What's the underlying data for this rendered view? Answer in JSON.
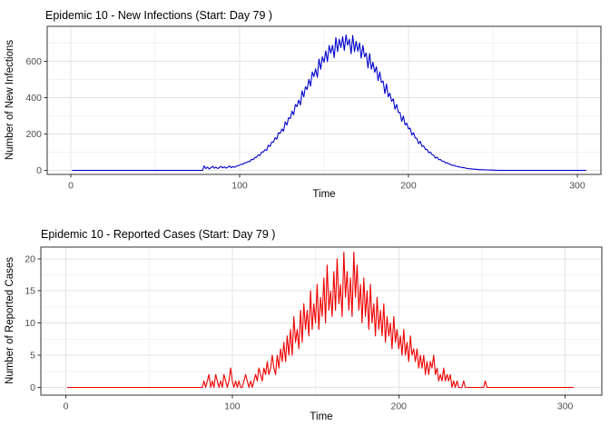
{
  "page": {
    "background": "#FFFFFF"
  },
  "theme": {
    "panel_background": "#FFFFFF",
    "grid_major": "#E4E4E4",
    "grid_minor": "#F2F2F2",
    "panel_border": "#333333",
    "tick_color": "#333333",
    "tick_label_color": "#4D4D4D",
    "title_color": "#000000"
  },
  "chart_data": [
    {
      "type": "line",
      "id": "new-infections",
      "title": "Epidemic 10 - New Infections (Start: Day 79 )",
      "xlabel": "Time",
      "ylabel": "Number of New Infections",
      "line_color": "#0000CD",
      "grid": true,
      "legend": "none",
      "x_ticks": [
        0,
        100,
        200,
        300
      ],
      "x_minor_ticks": [
        50,
        150,
        250
      ],
      "y_ticks": [
        0,
        200,
        400,
        600
      ],
      "y_minor_ticks": [
        100,
        300,
        500,
        700
      ],
      "xlim": [
        -14,
        314
      ],
      "ylim": [
        -22,
        793
      ],
      "x_first_day": 1,
      "x_step": 1,
      "values": [
        0,
        0,
        0,
        0,
        0,
        0,
        0,
        0,
        0,
        0,
        0,
        0,
        0,
        0,
        0,
        0,
        0,
        0,
        0,
        0,
        0,
        0,
        0,
        0,
        0,
        0,
        0,
        0,
        0,
        0,
        0,
        0,
        0,
        0,
        0,
        0,
        0,
        0,
        0,
        0,
        0,
        0,
        0,
        0,
        0,
        0,
        0,
        0,
        0,
        0,
        0,
        0,
        0,
        0,
        0,
        0,
        0,
        0,
        0,
        0,
        0,
        0,
        0,
        0,
        0,
        0,
        0,
        0,
        0,
        0,
        0,
        0,
        0,
        0,
        0,
        0,
        0,
        0,
        25,
        10,
        18,
        8,
        15,
        22,
        12,
        18,
        10,
        16,
        22,
        14,
        20,
        12,
        18,
        24,
        15,
        21,
        17,
        23,
        26,
        29,
        34,
        34,
        42,
        42,
        49,
        48,
        61,
        59,
        71,
        72,
        85,
        82,
        101,
        101,
        114,
        110,
        139,
        132,
        156,
        156,
        180,
        172,
        207,
        204,
        228,
        216,
        267,
        250,
        290,
        285,
        326,
        306,
        363,
        351,
        387,
        360,
        438,
        405,
        461,
        446,
        501,
        464,
        542,
        516,
        559,
        512,
        613,
        557,
        625,
        595,
        658,
        599,
        688,
        645,
        689,
        621,
        731,
        654,
        722,
        677,
        736,
        660,
        746,
        689,
        722,
        642,
        743,
        654,
        711,
        656,
        702,
        618,
        688,
        625,
        646,
        564,
        643,
        557,
        595,
        540,
        570,
        495,
        542,
        484,
        492,
        423,
        475,
        405,
        425,
        380,
        394,
        337,
        363,
        319,
        319,
        270,
        299,
        250,
        260,
        228,
        233,
        195,
        207,
        179,
        176,
        147,
        160,
        132,
        135,
        116,
        116,
        97,
        101,
        86,
        83,
        68,
        73,
        59,
        60,
        51,
        50,
        41,
        42,
        35,
        33,
        27,
        28,
        23,
        22,
        19,
        18,
        15,
        15,
        12,
        11,
        9,
        9,
        7,
        7,
        6,
        6,
        4,
        4,
        4,
        3,
        3,
        3,
        2,
        2,
        2,
        1,
        1,
        0,
        0,
        0,
        0,
        0,
        0,
        0,
        0,
        0,
        0,
        0,
        0,
        0,
        0,
        0,
        0,
        0,
        0,
        0,
        0,
        0,
        0,
        0,
        0,
        0,
        0,
        0,
        0,
        0,
        0,
        0,
        0,
        0,
        0,
        0,
        0,
        0,
        0,
        0,
        0,
        0,
        0,
        0,
        0,
        0,
        0,
        0,
        0,
        0,
        0,
        0,
        0,
        0
      ]
    },
    {
      "type": "line",
      "id": "reported-cases",
      "title": "Epidemic 10 - Reported Cases (Start: Day 79 )",
      "xlabel": "Time",
      "ylabel": "Number of Reported Cases",
      "line_color": "#EE0000",
      "grid": true,
      "legend": "none",
      "x_ticks": [
        0,
        100,
        200,
        300
      ],
      "x_minor_ticks": [
        50,
        150,
        250
      ],
      "y_ticks": [
        0,
        5,
        10,
        15,
        20
      ],
      "y_minor_ticks": [
        2.5,
        7.5,
        12.5,
        17.5
      ],
      "xlim": [
        -15,
        322
      ],
      "ylim": [
        -1.2,
        21.8
      ],
      "x_first_day": 1,
      "x_step": 1,
      "values": [
        0,
        0,
        0,
        0,
        0,
        0,
        0,
        0,
        0,
        0,
        0,
        0,
        0,
        0,
        0,
        0,
        0,
        0,
        0,
        0,
        0,
        0,
        0,
        0,
        0,
        0,
        0,
        0,
        0,
        0,
        0,
        0,
        0,
        0,
        0,
        0,
        0,
        0,
        0,
        0,
        0,
        0,
        0,
        0,
        0,
        0,
        0,
        0,
        0,
        0,
        0,
        0,
        0,
        0,
        0,
        0,
        0,
        0,
        0,
        0,
        0,
        0,
        0,
        0,
        0,
        0,
        0,
        0,
        0,
        0,
        0,
        0,
        0,
        0,
        0,
        0,
        0,
        0,
        0,
        0,
        0,
        0,
        1,
        0,
        1,
        2,
        0,
        1,
        0,
        2,
        1,
        0,
        1,
        0,
        2,
        1,
        0,
        1,
        3,
        1,
        0,
        1,
        0,
        1,
        0,
        0,
        1,
        2,
        1,
        0,
        1,
        0,
        1,
        2,
        1,
        3,
        2,
        1,
        3,
        2,
        4,
        2,
        3,
        5,
        3,
        2,
        5,
        3,
        6,
        4,
        7,
        4,
        8,
        5,
        9,
        5,
        11,
        7,
        9,
        6,
        12,
        7,
        13,
        9,
        12,
        8,
        15,
        9,
        13,
        10,
        16,
        9,
        14,
        11,
        17,
        10,
        19,
        12,
        15,
        11,
        18,
        12,
        20,
        13,
        16,
        11,
        21,
        14,
        18,
        12,
        17,
        11,
        21,
        14,
        19,
        12,
        16,
        10,
        17,
        11,
        15,
        9,
        16,
        10,
        13,
        8,
        14,
        9,
        12,
        8,
        13,
        7,
        11,
        8,
        10,
        6,
        11,
        7,
        9,
        6,
        8,
        5,
        9,
        5,
        7,
        4,
        8,
        5,
        6,
        4,
        6,
        3,
        5,
        3,
        5,
        2,
        4,
        2,
        4,
        3,
        5,
        2,
        3,
        1,
        2,
        1,
        3,
        1,
        2,
        1,
        2,
        0,
        1,
        0,
        1,
        0,
        0,
        0,
        1,
        0,
        0,
        0,
        0,
        0,
        0,
        0,
        0,
        0,
        0,
        0,
        0,
        1,
        0,
        0,
        0,
        0,
        0,
        0,
        0,
        0,
        0,
        0,
        0,
        0,
        0,
        0,
        0,
        0,
        0,
        0,
        0,
        0,
        0,
        0,
        0,
        0,
        0,
        0,
        0,
        0,
        0,
        0,
        0,
        0,
        0,
        0,
        0,
        0,
        0,
        0,
        0,
        0,
        0,
        0,
        0,
        0,
        0,
        0,
        0,
        0,
        0,
        0,
        0,
        0,
        0
      ]
    }
  ]
}
